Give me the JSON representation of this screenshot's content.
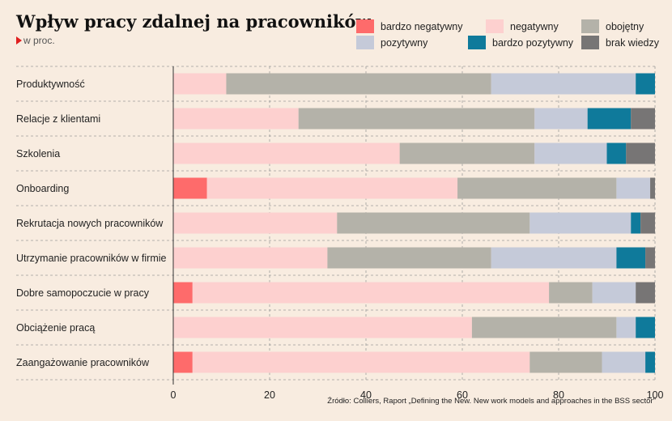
{
  "title": "Wpływ pracy zdalnej na pracowników",
  "subtitle": "w proc.",
  "source": "Źródło: Colliers, Raport „Defining the New. New work models and approaches in the BSS sector\"",
  "legend": [
    {
      "label": "bardzo negatywny",
      "color": "#fe6b6b"
    },
    {
      "label": "negatywny",
      "color": "#fdd0cf"
    },
    {
      "label": "obojętny",
      "color": "#b4b2a9"
    },
    {
      "label": "pozytywny",
      "color": "#c5cad9"
    },
    {
      "label": "bardzo pozytywny",
      "color": "#0f7a9b"
    },
    {
      "label": "brak wiedzy",
      "color": "#777575"
    }
  ],
  "chart_data": {
    "type": "bar",
    "orientation": "horizontal",
    "stacked": true,
    "categories": [
      "Produktywność",
      "Relacje z klientami",
      "Szkolenia",
      "Onboarding",
      "Rekrutacja nowych pracowników",
      "Utrzymanie pracowników w firmie",
      "Dobre samopoczucie w pracy",
      "Obciążenie pracą",
      "Zaangażowanie pracowników"
    ],
    "series": [
      {
        "name": "bardzo negatywny",
        "color": "#fe6b6b",
        "values": [
          0,
          0,
          0,
          7,
          0,
          0,
          4,
          0,
          4
        ]
      },
      {
        "name": "negatywny",
        "color": "#fdd0cf",
        "values": [
          11,
          26,
          47,
          52,
          34,
          32,
          74,
          62,
          70
        ]
      },
      {
        "name": "obojętny",
        "color": "#b4b2a9",
        "values": [
          55,
          49,
          28,
          33,
          40,
          34,
          9,
          30,
          15
        ]
      },
      {
        "name": "pozytywny",
        "color": "#c5cad9",
        "values": [
          30,
          11,
          15,
          7,
          21,
          26,
          9,
          4,
          9
        ]
      },
      {
        "name": "bardzo pozytywny",
        "color": "#0f7a9b",
        "values": [
          4,
          9,
          4,
          0,
          2,
          6,
          0,
          4,
          2
        ]
      },
      {
        "name": "brak wiedzy",
        "color": "#777575",
        "values": [
          0,
          5,
          6,
          1,
          3,
          2,
          4,
          0,
          0
        ]
      }
    ],
    "xlim": [
      0,
      100
    ],
    "xticks": [
      "0",
      "20",
      "40",
      "60",
      "80",
      "100"
    ],
    "xtick_values": [
      0,
      20,
      40,
      60,
      80,
      100
    ],
    "grid": "vertical dashed",
    "legend_position": "top-right"
  }
}
